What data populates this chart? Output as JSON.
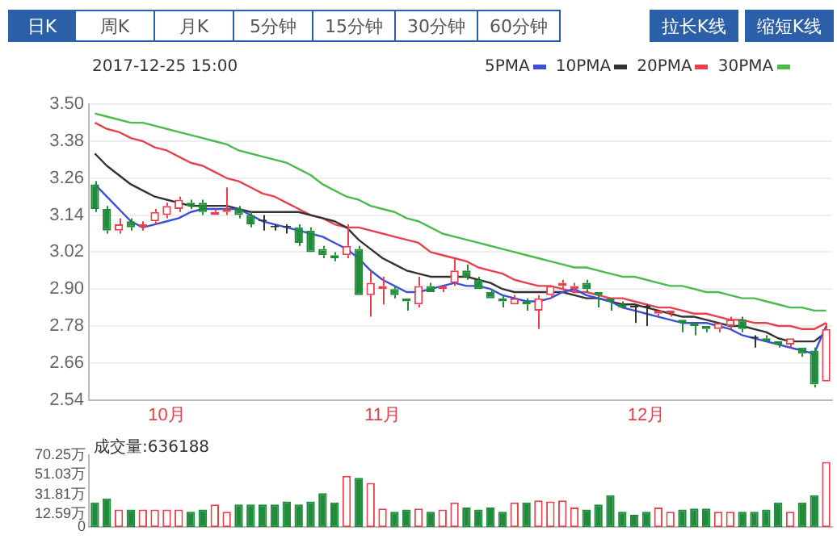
{
  "chart_data": [
    {
      "type": "other",
      "annotations": [
        "日K",
        "周K",
        "月K",
        "5分钟",
        "15分钟",
        "30分钟",
        "60分钟",
        "拉长K线",
        "缩短K线"
      ]
    },
    {
      "type": "candlestick",
      "title": "2017-12-25 15:00",
      "categories": [
        null,
        null,
        null,
        null,
        null,
        null,
        "10月",
        null,
        null,
        null,
        null,
        null,
        null,
        null,
        null,
        null,
        null,
        null,
        null,
        null,
        null,
        null,
        null,
        null,
        "11月",
        null,
        null,
        null,
        null,
        null,
        null,
        null,
        null,
        null,
        null,
        null,
        null,
        null,
        null,
        null,
        null,
        null,
        null,
        null,
        null,
        null,
        "12月",
        null,
        null,
        null,
        null,
        null,
        null,
        null,
        null,
        null,
        null,
        null,
        null,
        null,
        null,
        null
      ],
      "ohlc": [
        [
          3.24,
          3.25,
          3.15,
          3.16
        ],
        [
          3.16,
          3.17,
          3.08,
          3.09
        ],
        [
          3.09,
          3.13,
          3.08,
          3.11
        ],
        [
          3.12,
          3.13,
          3.09,
          3.1
        ],
        [
          3.1,
          3.12,
          3.09,
          3.11
        ],
        [
          3.12,
          3.16,
          3.11,
          3.15
        ],
        [
          3.14,
          3.18,
          3.13,
          3.17
        ],
        [
          3.16,
          3.2,
          3.15,
          3.19
        ],
        [
          3.18,
          3.19,
          3.16,
          3.17
        ],
        [
          3.18,
          3.19,
          3.14,
          3.15
        ],
        [
          3.14,
          3.16,
          3.14,
          3.15
        ],
        [
          3.15,
          3.23,
          3.14,
          3.16
        ],
        [
          3.16,
          3.17,
          3.13,
          3.14
        ],
        [
          3.14,
          3.15,
          3.1,
          3.11
        ],
        [
          3.12,
          3.14,
          3.09,
          3.12
        ],
        [
          3.1,
          3.11,
          3.09,
          3.1
        ],
        [
          3.1,
          3.11,
          3.08,
          3.1
        ],
        [
          3.1,
          3.11,
          3.04,
          3.05
        ],
        [
          3.09,
          3.1,
          3.02,
          3.02
        ],
        [
          3.03,
          3.04,
          3.0,
          3.01
        ],
        [
          3.01,
          3.02,
          2.99,
          3.0
        ],
        [
          3.01,
          3.11,
          3.0,
          3.04
        ],
        [
          3.03,
          3.04,
          2.88,
          2.88
        ],
        [
          2.88,
          2.96,
          2.81,
          2.92
        ],
        [
          2.9,
          2.94,
          2.85,
          2.91
        ],
        [
          2.9,
          2.91,
          2.87,
          2.88
        ],
        [
          2.87,
          2.87,
          2.83,
          2.86
        ],
        [
          2.85,
          2.94,
          2.84,
          2.91
        ],
        [
          2.91,
          2.92,
          2.89,
          2.89
        ],
        [
          2.9,
          2.91,
          2.89,
          2.91
        ],
        [
          2.92,
          3.0,
          2.91,
          2.96
        ],
        [
          2.96,
          2.98,
          2.93,
          2.94
        ],
        [
          2.93,
          2.94,
          2.9,
          2.9
        ],
        [
          2.89,
          2.9,
          2.87,
          2.87
        ],
        [
          2.87,
          2.88,
          2.84,
          2.86
        ],
        [
          2.85,
          2.88,
          2.85,
          2.87
        ],
        [
          2.86,
          2.87,
          2.83,
          2.85
        ],
        [
          2.83,
          2.88,
          2.77,
          2.87
        ],
        [
          2.88,
          2.91,
          2.87,
          2.91
        ],
        [
          2.91,
          2.93,
          2.9,
          2.92
        ],
        [
          2.9,
          2.92,
          2.89,
          2.91
        ],
        [
          2.92,
          2.93,
          2.89,
          2.9
        ],
        [
          2.89,
          2.89,
          2.84,
          2.88
        ],
        [
          2.87,
          2.87,
          2.83,
          2.86
        ],
        [
          2.85,
          2.86,
          2.84,
          2.84
        ],
        [
          2.84,
          2.85,
          2.79,
          2.84
        ],
        [
          2.84,
          2.85,
          2.78,
          2.84
        ],
        [
          2.82,
          2.83,
          2.81,
          2.83
        ],
        [
          2.82,
          2.83,
          2.81,
          2.83
        ],
        [
          2.8,
          2.8,
          2.76,
          2.79
        ],
        [
          2.79,
          2.79,
          2.75,
          2.78
        ],
        [
          2.78,
          2.78,
          2.76,
          2.77
        ],
        [
          2.77,
          2.79,
          2.76,
          2.79
        ],
        [
          2.78,
          2.81,
          2.77,
          2.8
        ],
        [
          2.8,
          2.81,
          2.76,
          2.77
        ],
        [
          2.74,
          2.75,
          2.71,
          2.74
        ],
        [
          2.74,
          2.75,
          2.73,
          2.73
        ],
        [
          2.73,
          2.73,
          2.71,
          2.72
        ],
        [
          2.72,
          2.74,
          2.71,
          2.74
        ],
        [
          2.71,
          2.71,
          2.68,
          2.69
        ],
        [
          2.7,
          2.71,
          2.58,
          2.59
        ],
        [
          2.6,
          2.79,
          2.6,
          2.77
        ]
      ],
      "colors": [
        "#1f8b3b",
        "#1f8b3b",
        "#e8414e",
        "#1f8b3b",
        "#e8414e",
        "#e8414e",
        "#e8414e",
        "#e8414e",
        "#1f8b3b",
        "#1f8b3b",
        "#e8414e",
        "#e8414e",
        "#1f8b3b",
        "#1f8b3b",
        "#333333",
        "#333333",
        "#333333",
        "#1f8b3b",
        "#1f8b3b",
        "#1f8b3b",
        "#1f8b3b",
        "#e8414e",
        "#1f8b3b",
        "#e8414e",
        "#e8414e",
        "#1f8b3b",
        "#1f8b3b",
        "#e8414e",
        "#1f8b3b",
        "#e8414e",
        "#e8414e",
        "#1f8b3b",
        "#1f8b3b",
        "#1f8b3b",
        "#1f8b3b",
        "#e8414e",
        "#1f8b3b",
        "#e8414e",
        "#e8414e",
        "#e8414e",
        "#e8414e",
        "#1f8b3b",
        "#1f8b3b",
        "#1f8b3b",
        "#1f8b3b",
        "#333333",
        "#333333",
        "#e8414e",
        "#e8414e",
        "#1f8b3b",
        "#1f8b3b",
        "#1f8b3b",
        "#e8414e",
        "#e8414e",
        "#1f8b3b",
        "#333333",
        "#1f8b3b",
        "#1f8b3b",
        "#e8414e",
        "#1f8b3b",
        "#1f8b3b",
        "#e8414e"
      ],
      "series": [
        {
          "type": "line",
          "name": "5PMA",
          "color": "#3b4fd8",
          "values": [
            3.24,
            3.2,
            3.16,
            3.12,
            3.1,
            3.11,
            3.12,
            3.13,
            3.15,
            3.16,
            3.16,
            3.16,
            3.16,
            3.14,
            3.12,
            3.11,
            3.1,
            3.09,
            3.08,
            3.07,
            3.05,
            3.03,
            3.0,
            2.96,
            2.93,
            2.91,
            2.89,
            2.89,
            2.9,
            2.91,
            2.92,
            2.91,
            2.91,
            2.9,
            2.88,
            2.87,
            2.86,
            2.86,
            2.87,
            2.89,
            2.9,
            2.88,
            2.87,
            2.86,
            2.84,
            2.83,
            2.82,
            2.81,
            2.8,
            2.79,
            2.79,
            2.79,
            2.78,
            2.77,
            2.75,
            2.74,
            2.73,
            2.72,
            2.71,
            2.7,
            2.69,
            2.78
          ]
        },
        {
          "type": "line",
          "name": "10PMA",
          "color": "#333333",
          "values": [
            3.34,
            3.3,
            3.27,
            3.24,
            3.22,
            3.2,
            3.19,
            3.18,
            3.17,
            3.17,
            3.17,
            3.17,
            3.16,
            3.15,
            3.15,
            3.15,
            3.15,
            3.15,
            3.14,
            3.13,
            3.12,
            3.1,
            3.06,
            3.03,
            3.0,
            2.98,
            2.96,
            2.95,
            2.94,
            2.94,
            2.94,
            2.94,
            2.93,
            2.92,
            2.9,
            2.89,
            2.89,
            2.89,
            2.89,
            2.89,
            2.88,
            2.87,
            2.87,
            2.86,
            2.85,
            2.85,
            2.84,
            2.83,
            2.82,
            2.81,
            2.81,
            2.8,
            2.79,
            2.78,
            2.78,
            2.77,
            2.76,
            2.74,
            2.73,
            2.73,
            2.73,
            2.76
          ]
        },
        {
          "type": "line",
          "name": "20PMA",
          "color": "#e8414e",
          "values": [
            3.44,
            3.42,
            3.41,
            3.39,
            3.38,
            3.36,
            3.35,
            3.33,
            3.31,
            3.3,
            3.28,
            3.26,
            3.25,
            3.23,
            3.21,
            3.2,
            3.18,
            3.16,
            3.14,
            3.13,
            3.11,
            3.1,
            3.1,
            3.09,
            3.08,
            3.07,
            3.06,
            3.05,
            3.02,
            3.01,
            3.0,
            2.99,
            2.97,
            2.96,
            2.95,
            2.93,
            2.92,
            2.91,
            2.91,
            2.9,
            2.89,
            2.89,
            2.88,
            2.87,
            2.87,
            2.86,
            2.85,
            2.84,
            2.84,
            2.83,
            2.82,
            2.82,
            2.81,
            2.8,
            2.8,
            2.79,
            2.79,
            2.78,
            2.78,
            2.77,
            2.77,
            2.79
          ]
        },
        {
          "type": "line",
          "name": "30PMA",
          "color": "#4cbb4c",
          "values": [
            3.47,
            3.46,
            3.45,
            3.44,
            3.44,
            3.43,
            3.42,
            3.41,
            3.4,
            3.39,
            3.38,
            3.37,
            3.35,
            3.34,
            3.33,
            3.32,
            3.31,
            3.29,
            3.27,
            3.24,
            3.22,
            3.2,
            3.19,
            3.17,
            3.16,
            3.15,
            3.13,
            3.12,
            3.1,
            3.08,
            3.07,
            3.06,
            3.05,
            3.04,
            3.03,
            3.02,
            3.01,
            3.0,
            2.99,
            2.98,
            2.97,
            2.97,
            2.96,
            2.95,
            2.94,
            2.94,
            2.93,
            2.92,
            2.91,
            2.91,
            2.9,
            2.89,
            2.89,
            2.88,
            2.87,
            2.87,
            2.86,
            2.85,
            2.84,
            2.84,
            2.83,
            2.83
          ]
        }
      ],
      "ylim": [
        2.54,
        3.5
      ],
      "yticks": [
        {
          "value": 3.5,
          "label": "3.50"
        },
        {
          "value": 3.38,
          "label": "3.38"
        },
        {
          "value": 3.26,
          "label": "3.26"
        },
        {
          "value": 3.14,
          "label": "3.14"
        },
        {
          "value": 3.02,
          "label": "3.02"
        },
        {
          "value": 2.9,
          "label": "2.90"
        },
        {
          "value": 2.78,
          "label": "2.78"
        },
        {
          "value": 2.66,
          "label": "2.66"
        },
        {
          "value": 2.54,
          "label": "2.54"
        }
      ],
      "grid": "y",
      "legend": "top right",
      "marker": "none"
    },
    {
      "type": "bar",
      "annotations": [
        "成交量:636188"
      ],
      "categories": [
        null,
        null,
        null,
        null,
        null,
        null,
        null,
        null,
        null,
        null,
        null,
        null,
        null,
        null,
        null,
        null,
        null,
        null,
        null,
        null,
        null,
        null,
        null,
        null,
        null,
        null,
        null,
        null,
        null,
        null,
        null,
        null,
        null,
        null,
        null,
        null,
        null,
        null,
        null,
        null,
        null,
        null,
        null,
        null,
        null,
        null,
        null,
        null,
        null,
        null,
        null,
        null,
        null,
        null,
        null,
        null,
        null,
        null,
        null,
        null,
        null,
        null
      ],
      "values": [
        24,
        28,
        17,
        17,
        17,
        17,
        17,
        17,
        15,
        17,
        22,
        15,
        22,
        22,
        22,
        22,
        25,
        22,
        25,
        33,
        24,
        50,
        48,
        43,
        18,
        15,
        17,
        18,
        15,
        17,
        24,
        19,
        17,
        19,
        15,
        24,
        24,
        26,
        25,
        26,
        19,
        17,
        22,
        31,
        15,
        12,
        15,
        19,
        15,
        17,
        18,
        18,
        15,
        15,
        15,
        15,
        17,
        24,
        15,
        24,
        31,
        63.62
      ],
      "colors": [
        "#1f8b3b",
        "#1f8b3b",
        "#e8414e",
        "#1f8b3b",
        "#e8414e",
        "#e8414e",
        "#e8414e",
        "#e8414e",
        "#1f8b3b",
        "#1f8b3b",
        "#e8414e",
        "#e8414e",
        "#1f8b3b",
        "#1f8b3b",
        "#1f8b3b",
        "#1f8b3b",
        "#1f8b3b",
        "#1f8b3b",
        "#1f8b3b",
        "#1f8b3b",
        "#1f8b3b",
        "#e8414e",
        "#1f8b3b",
        "#e8414e",
        "#e8414e",
        "#1f8b3b",
        "#1f8b3b",
        "#e8414e",
        "#1f8b3b",
        "#e8414e",
        "#e8414e",
        "#1f8b3b",
        "#1f8b3b",
        "#1f8b3b",
        "#1f8b3b",
        "#e8414e",
        "#1f8b3b",
        "#e8414e",
        "#e8414e",
        "#e8414e",
        "#e8414e",
        "#1f8b3b",
        "#1f8b3b",
        "#1f8b3b",
        "#1f8b3b",
        "#1f8b3b",
        "#1f8b3b",
        "#e8414e",
        "#e8414e",
        "#1f8b3b",
        "#1f8b3b",
        "#1f8b3b",
        "#e8414e",
        "#e8414e",
        "#1f8b3b",
        "#1f8b3b",
        "#1f8b3b",
        "#1f8b3b",
        "#e8414e",
        "#1f8b3b",
        "#1f8b3b",
        "#e8414e"
      ],
      "ylim": [
        0,
        70.25
      ],
      "yticks": [
        0,
        {
          "value": 12.59,
          "label": "12.59万"
        },
        {
          "value": 31.81,
          "label": "31.81万"
        },
        {
          "value": 51.03,
          "label": "51.03万"
        },
        {
          "value": 70.25,
          "label": "70.25万"
        }
      ],
      "tick_labels": "y"
    }
  ]
}
